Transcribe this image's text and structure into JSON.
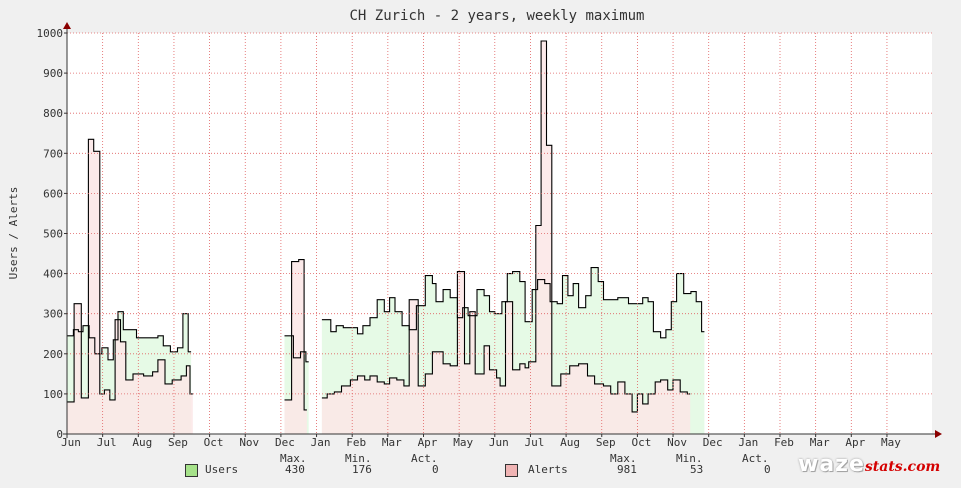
{
  "chart_data": {
    "type": "area",
    "title": "CH Zurich - 2 years, weekly maximum",
    "ylabel": "Users / Alerts",
    "xlabel": "",
    "ylim": [
      0,
      1000
    ],
    "yticks": [
      0,
      100,
      200,
      300,
      400,
      500,
      600,
      700,
      800,
      900,
      1000
    ],
    "grid": true,
    "x_tick_labels": [
      "Jun",
      "Jul",
      "Aug",
      "Sep",
      "Oct",
      "Nov",
      "Dec",
      "Jan",
      "Feb",
      "Mar",
      "Apr",
      "May",
      "Jun",
      "Jul",
      "Aug",
      "Sep",
      "Oct",
      "Nov",
      "Dec",
      "Jan",
      "Feb",
      "Mar",
      "Apr",
      "May"
    ],
    "series": [
      {
        "name": "Users",
        "color_fill": "#e6fae6",
        "color_line": "#000000",
        "swatch": "#a6e28a",
        "points": [
          [
            0.0,
            245
          ],
          [
            0.18,
            260
          ],
          [
            0.32,
            255
          ],
          [
            0.45,
            270
          ],
          [
            0.62,
            240
          ],
          [
            0.78,
            200
          ],
          [
            0.98,
            215
          ],
          [
            1.15,
            185
          ],
          [
            1.3,
            235
          ],
          [
            1.43,
            305
          ],
          [
            1.58,
            260
          ],
          [
            1.8,
            260
          ],
          [
            1.95,
            240
          ],
          [
            2.2,
            240
          ],
          [
            2.55,
            245
          ],
          [
            2.7,
            220
          ],
          [
            2.9,
            205
          ],
          [
            3.1,
            215
          ],
          [
            3.25,
            300
          ],
          [
            3.4,
            205
          ],
          [
            3.45,
            null
          ],
          [
            6.1,
            245
          ],
          [
            6.35,
            190
          ],
          [
            6.55,
            205
          ],
          [
            6.7,
            180
          ],
          [
            6.75,
            null
          ],
          [
            7.15,
            285
          ],
          [
            7.4,
            255
          ],
          [
            7.55,
            270
          ],
          [
            7.75,
            265
          ],
          [
            8.0,
            265
          ],
          [
            8.15,
            250
          ],
          [
            8.3,
            270
          ],
          [
            8.5,
            290
          ],
          [
            8.7,
            335
          ],
          [
            8.9,
            305
          ],
          [
            9.05,
            340
          ],
          [
            9.2,
            305
          ],
          [
            9.4,
            270
          ],
          [
            9.6,
            260
          ],
          [
            9.8,
            320
          ],
          [
            10.05,
            395
          ],
          [
            10.25,
            375
          ],
          [
            10.35,
            330
          ],
          [
            10.55,
            360
          ],
          [
            10.75,
            340
          ],
          [
            10.95,
            290
          ],
          [
            11.1,
            315
          ],
          [
            11.25,
            295
          ],
          [
            11.5,
            360
          ],
          [
            11.7,
            345
          ],
          [
            11.85,
            305
          ],
          [
            12.0,
            300
          ],
          [
            12.2,
            330
          ],
          [
            12.35,
            400
          ],
          [
            12.5,
            405
          ],
          [
            12.7,
            380
          ],
          [
            12.85,
            280
          ],
          [
            13.05,
            360
          ],
          [
            13.2,
            385
          ],
          [
            13.4,
            375
          ],
          [
            13.55,
            330
          ],
          [
            13.75,
            325
          ],
          [
            13.9,
            395
          ],
          [
            14.05,
            345
          ],
          [
            14.2,
            375
          ],
          [
            14.35,
            315
          ],
          [
            14.55,
            345
          ],
          [
            14.7,
            415
          ],
          [
            14.9,
            380
          ],
          [
            15.05,
            335
          ],
          [
            15.45,
            340
          ],
          [
            15.6,
            340
          ],
          [
            15.75,
            325
          ],
          [
            16.0,
            325
          ],
          [
            16.15,
            340
          ],
          [
            16.3,
            330
          ],
          [
            16.45,
            255
          ],
          [
            16.65,
            240
          ],
          [
            16.8,
            260
          ],
          [
            16.95,
            330
          ],
          [
            17.1,
            400
          ],
          [
            17.3,
            350
          ],
          [
            17.5,
            355
          ],
          [
            17.65,
            330
          ],
          [
            17.8,
            255
          ]
        ]
      },
      {
        "name": "Alerts",
        "color_fill": "#fce6e6",
        "color_line": "#000000",
        "swatch": "#f0b4b4",
        "points": [
          [
            0.0,
            80
          ],
          [
            0.2,
            325
          ],
          [
            0.4,
            90
          ],
          [
            0.6,
            735
          ],
          [
            0.75,
            705
          ],
          [
            0.92,
            100
          ],
          [
            1.05,
            110
          ],
          [
            1.2,
            85
          ],
          [
            1.35,
            285
          ],
          [
            1.5,
            230
          ],
          [
            1.65,
            135
          ],
          [
            1.85,
            150
          ],
          [
            2.15,
            145
          ],
          [
            2.4,
            155
          ],
          [
            2.55,
            185
          ],
          [
            2.75,
            125
          ],
          [
            2.95,
            135
          ],
          [
            3.2,
            145
          ],
          [
            3.35,
            170
          ],
          [
            3.45,
            100
          ],
          [
            3.5,
            null
          ],
          [
            6.1,
            85
          ],
          [
            6.3,
            430
          ],
          [
            6.5,
            435
          ],
          [
            6.65,
            60
          ],
          [
            6.7,
            null
          ],
          [
            7.15,
            90
          ],
          [
            7.3,
            100
          ],
          [
            7.5,
            105
          ],
          [
            7.7,
            120
          ],
          [
            7.95,
            135
          ],
          [
            8.15,
            145
          ],
          [
            8.35,
            135
          ],
          [
            8.5,
            145
          ],
          [
            8.7,
            130
          ],
          [
            8.9,
            125
          ],
          [
            9.05,
            140
          ],
          [
            9.25,
            135
          ],
          [
            9.45,
            120
          ],
          [
            9.6,
            335
          ],
          [
            9.85,
            120
          ],
          [
            10.05,
            150
          ],
          [
            10.25,
            205
          ],
          [
            10.4,
            205
          ],
          [
            10.55,
            175
          ],
          [
            10.75,
            170
          ],
          [
            10.95,
            405
          ],
          [
            11.15,
            175
          ],
          [
            11.3,
            305
          ],
          [
            11.45,
            150
          ],
          [
            11.7,
            220
          ],
          [
            11.85,
            160
          ],
          [
            12.05,
            140
          ],
          [
            12.15,
            120
          ],
          [
            12.3,
            330
          ],
          [
            12.5,
            160
          ],
          [
            12.7,
            175
          ],
          [
            12.85,
            165
          ],
          [
            12.95,
            180
          ],
          [
            13.15,
            520
          ],
          [
            13.3,
            980
          ],
          [
            13.45,
            720
          ],
          [
            13.6,
            120
          ],
          [
            13.85,
            150
          ],
          [
            14.1,
            170
          ],
          [
            14.35,
            175
          ],
          [
            14.6,
            145
          ],
          [
            14.8,
            125
          ],
          [
            15.05,
            120
          ],
          [
            15.25,
            100
          ],
          [
            15.45,
            130
          ],
          [
            15.65,
            100
          ],
          [
            15.85,
            55
          ],
          [
            16.0,
            100
          ],
          [
            16.15,
            75
          ],
          [
            16.3,
            100
          ],
          [
            16.5,
            130
          ],
          [
            16.65,
            135
          ],
          [
            16.85,
            110
          ],
          [
            17.0,
            135
          ],
          [
            17.2,
            105
          ],
          [
            17.4,
            100
          ]
        ]
      }
    ],
    "stats_headers": [
      "Max.",
      "Min.",
      "Act."
    ],
    "stats": [
      {
        "name": "Users",
        "max": "430",
        "min": "176",
        "act": "0"
      },
      {
        "name": "Alerts",
        "max": "981",
        "min": "53",
        "act": "0"
      }
    ]
  },
  "logo": {
    "brand": "waze",
    "suffix": "stats.com"
  }
}
